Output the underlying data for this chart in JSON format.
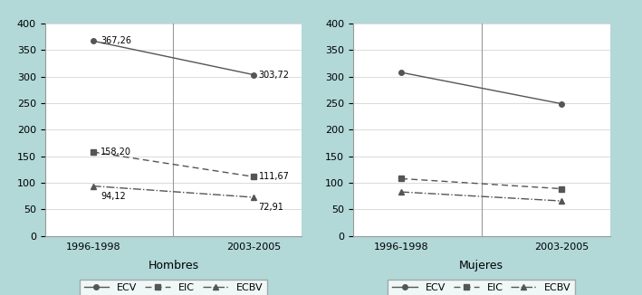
{
  "left_title": "Hombres",
  "right_title": "Mujeres",
  "x_labels": [
    "1996-1998",
    "2003-2005"
  ],
  "left": {
    "ECV": [
      367.26,
      303.72
    ],
    "EIC": [
      158.2,
      111.67
    ],
    "ECBV": [
      94.12,
      72.91
    ]
  },
  "left_labels": {
    "ECV": [
      "367,26",
      "303,72"
    ],
    "EIC": [
      "158,20",
      "111,67"
    ],
    "ECBV": [
      "94,12",
      "72,91"
    ]
  },
  "right": {
    "ECV": [
      308.0,
      249.0
    ],
    "EIC": [
      108.0,
      89.0
    ],
    "ECBV": [
      83.0,
      66.0
    ]
  },
  "ylim": [
    0,
    400
  ],
  "yticks": [
    0,
    50,
    100,
    150,
    200,
    250,
    300,
    350,
    400
  ],
  "line_color": "#555555",
  "background_outer": "#b2d8d8",
  "background_inner": "#ffffff",
  "border_color": "#999999",
  "grid_color": "#cccccc",
  "font_size": 8,
  "label_font_size": 7
}
